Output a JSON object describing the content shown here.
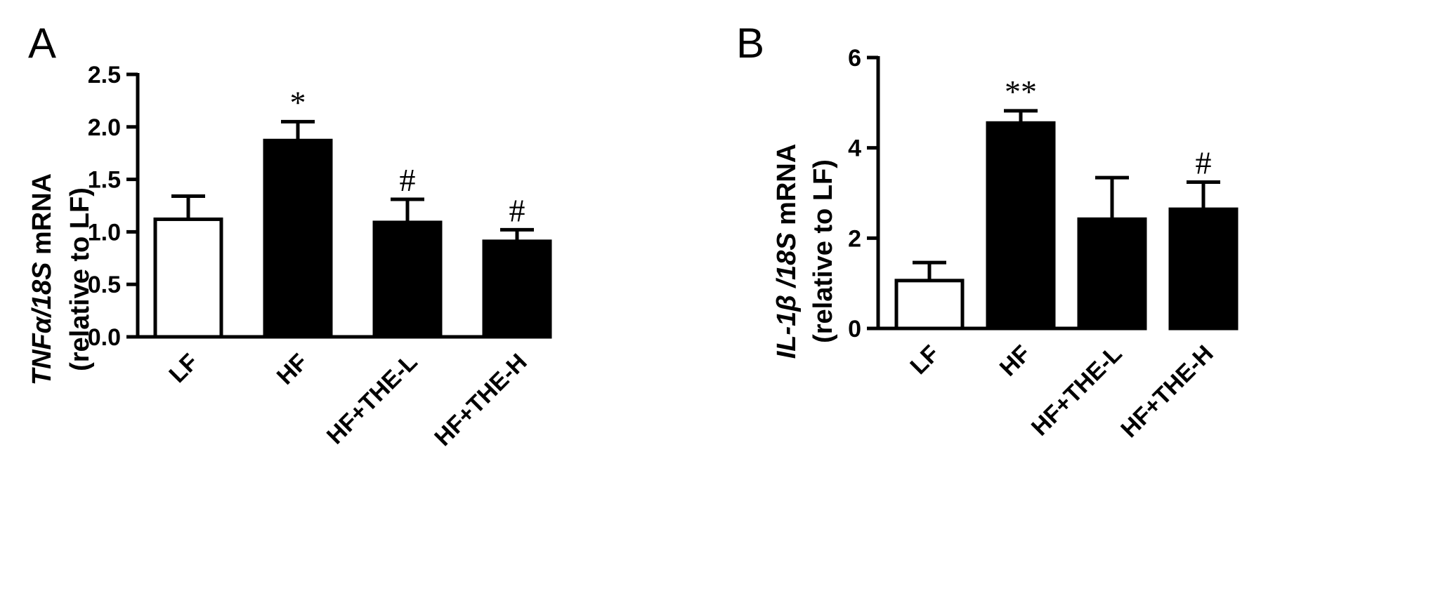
{
  "chart_data": [
    {
      "type": "bar",
      "panel": "A",
      "categories": [
        "LF",
        "HF",
        "HF+THE-L",
        "HF+THE-H"
      ],
      "values": [
        1.12,
        1.87,
        1.09,
        0.91
      ],
      "errors": [
        0.22,
        0.18,
        0.22,
        0.11
      ],
      "fills": [
        "#ffffff",
        "#000000",
        "#000000",
        "#000000"
      ],
      "annotations": [
        "",
        "*",
        "#",
        "#"
      ],
      "ylabel_italic": "TNFα/18S",
      "ylabel_rest": " mRNA",
      "ylabel_line2": "(relative to LF)",
      "ylim": [
        0,
        2.5
      ],
      "yticks": [
        0.0,
        0.5,
        1.0,
        1.5,
        2.0,
        2.5
      ],
      "ytick_labels": [
        "0.0",
        "0.5",
        "1.0",
        "1.5",
        "2.0",
        "2.5"
      ]
    },
    {
      "type": "bar",
      "panel": "B",
      "categories": [
        "LF",
        "HF",
        "HF+THE-L",
        "HF+THE-H"
      ],
      "values": [
        1.06,
        4.55,
        2.42,
        2.64
      ],
      "errors": [
        0.4,
        0.27,
        0.92,
        0.6
      ],
      "fills": [
        "#ffffff",
        "#000000",
        "#000000",
        "#000000"
      ],
      "annotations": [
        "",
        "**",
        "",
        "#"
      ],
      "ylabel_italic": "IL-1β /18S",
      "ylabel_rest": " mRNA",
      "ylabel_line2": "(relative to LF)",
      "ylim": [
        0,
        6
      ],
      "yticks": [
        0,
        2,
        4,
        6
      ],
      "ytick_labels": [
        "0",
        "2",
        "4",
        "6"
      ]
    }
  ]
}
